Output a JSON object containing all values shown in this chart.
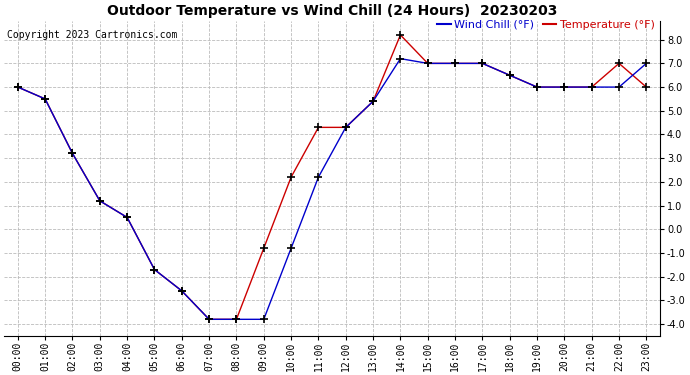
{
  "title": "Outdoor Temperature vs Wind Chill (24 Hours)  20230203",
  "copyright": "Copyright 2023 Cartronics.com",
  "legend_wind_chill": "Wind Chill (°F)",
  "legend_temperature": "Temperature (°F)",
  "x_labels": [
    "00:00",
    "01:00",
    "02:00",
    "03:00",
    "04:00",
    "05:00",
    "06:00",
    "07:00",
    "08:00",
    "09:00",
    "10:00",
    "11:00",
    "12:00",
    "13:00",
    "14:00",
    "15:00",
    "16:00",
    "17:00",
    "18:00",
    "19:00",
    "20:00",
    "21:00",
    "22:00",
    "23:00"
  ],
  "temperature": [
    6.0,
    5.5,
    3.2,
    1.2,
    0.5,
    -1.7,
    -2.6,
    -3.8,
    -3.8,
    -0.8,
    2.2,
    4.3,
    4.3,
    5.4,
    8.2,
    7.0,
    7.0,
    7.0,
    6.5,
    6.0,
    6.0,
    6.0,
    7.0,
    6.0
  ],
  "wind_chill": [
    6.0,
    5.5,
    3.2,
    1.2,
    0.5,
    -1.7,
    -2.6,
    -3.8,
    -3.8,
    -3.8,
    -0.8,
    2.2,
    4.3,
    5.4,
    7.2,
    7.0,
    7.0,
    7.0,
    6.5,
    6.0,
    6.0,
    6.0,
    6.0,
    7.0
  ],
  "temp_color": "#cc0000",
  "wind_chill_color": "#0000cc",
  "bg_color": "#ffffff",
  "grid_color": "#bbbbbb",
  "ylim_min": -4.5,
  "ylim_max": 8.8,
  "yticks": [
    -4.0,
    -3.0,
    -2.0,
    -1.0,
    0.0,
    1.0,
    2.0,
    3.0,
    4.0,
    5.0,
    6.0,
    7.0,
    8.0
  ],
  "marker": "+",
  "marker_color": "#000000",
  "marker_size": 6,
  "line_width": 1.0,
  "title_fontsize": 10,
  "tick_fontsize": 7,
  "copyright_fontsize": 7,
  "legend_fontsize": 8
}
